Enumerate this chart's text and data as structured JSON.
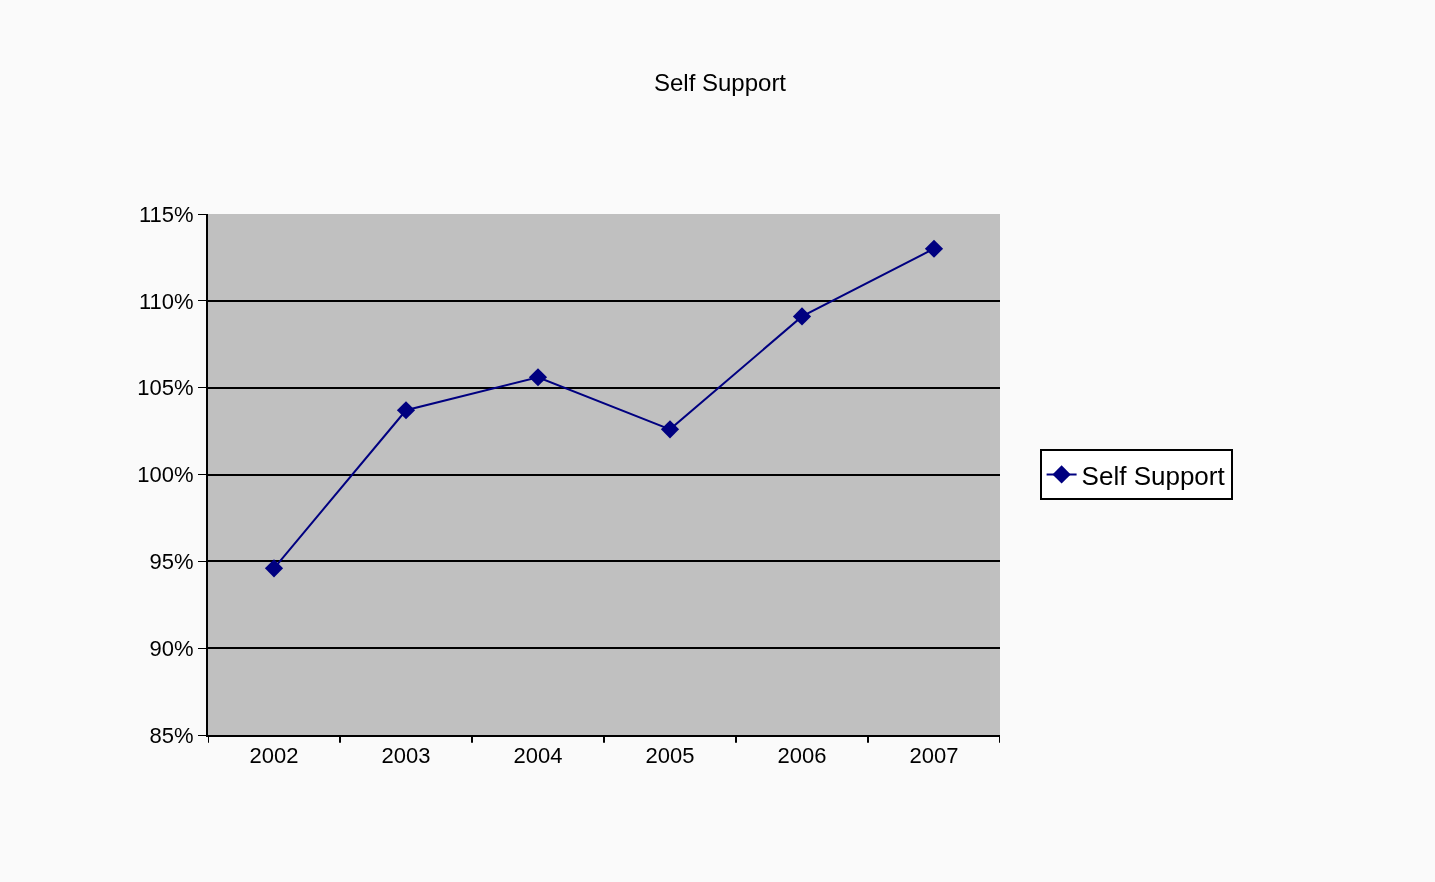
{
  "chart_data": {
    "type": "line",
    "title": "Self Support",
    "categories": [
      "2002",
      "2003",
      "2004",
      "2005",
      "2006",
      "2007"
    ],
    "series": [
      {
        "name": "Self Support",
        "color": "#000080",
        "values": [
          94.6,
          103.7,
          105.6,
          102.6,
          109.1,
          113.0
        ]
      }
    ],
    "ylim": [
      85,
      115
    ],
    "yticks": [
      {
        "value": 85,
        "label": "85%"
      },
      {
        "value": 90,
        "label": "90%"
      },
      {
        "value": 95,
        "label": "95%"
      },
      {
        "value": 100,
        "label": "100%"
      },
      {
        "value": 105,
        "label": "105%"
      },
      {
        "value": 110,
        "label": "110%"
      },
      {
        "value": 115,
        "label": "115%"
      }
    ],
    "grid": "y",
    "legend": "right",
    "marker": "diamond",
    "line_style": "solid"
  }
}
